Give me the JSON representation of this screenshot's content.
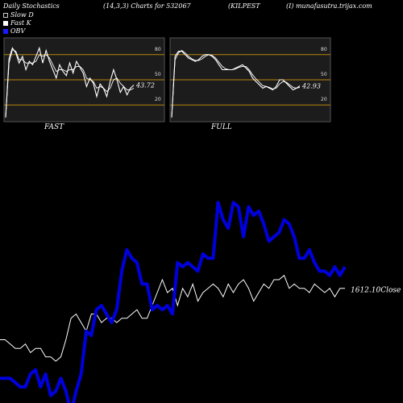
{
  "header": {
    "title": "Daily Stochastics",
    "params": "(14,3,3) Charts for 532067",
    "symbol": "(KILPEST",
    "source": "(I) munafasutra.trijax.com"
  },
  "legend": {
    "slow_d": "Slow  D",
    "fast_k": "Fast K",
    "obv": "OBV"
  },
  "colors": {
    "background": "#000000",
    "panel_background": "#1c1c1c",
    "level_line": "#b8860b",
    "stoch_line": "#ffffff",
    "obv": "#0000dd",
    "close": "#ffffff"
  },
  "chart_data": [
    {
      "type": "line",
      "panel": "FAST",
      "label": "FAST",
      "ylim": [
        0,
        100
      ],
      "levels": [
        20,
        50,
        80
      ],
      "tick_labels": [
        "80",
        "50",
        "20"
      ],
      "last_value_label": "43.72",
      "series": [
        {
          "values": [
            5,
            75,
            88,
            82,
            70,
            78,
            62,
            72,
            68,
            78,
            88,
            70,
            85,
            72,
            62,
            52,
            68,
            60,
            55,
            70,
            58,
            72,
            65,
            58,
            42,
            52,
            46,
            30,
            45,
            40,
            30,
            48,
            62,
            50,
            35,
            42,
            32,
            40,
            43.72
          ]
        },
        {
          "values": [
            5,
            70,
            86,
            84,
            74,
            74,
            70,
            70,
            70,
            72,
            80,
            78,
            80,
            76,
            68,
            60,
            62,
            62,
            60,
            62,
            62,
            66,
            66,
            62,
            52,
            50,
            48,
            40,
            42,
            40,
            36,
            40,
            50,
            52,
            46,
            42,
            38,
            38,
            40
          ]
        }
      ]
    },
    {
      "type": "line",
      "panel": "FULL",
      "label": "FULL",
      "ylim": [
        0,
        100
      ],
      "levels": [
        20,
        50,
        80
      ],
      "tick_labels": [
        "80",
        "50",
        "20"
      ],
      "last_value_label": "42.93",
      "series": [
        {
          "values": [
            5,
            78,
            84,
            84,
            80,
            76,
            74,
            72,
            74,
            78,
            80,
            80,
            78,
            74,
            68,
            62,
            62,
            62,
            62,
            64,
            66,
            68,
            64,
            60,
            52,
            48,
            44,
            40,
            42,
            40,
            38,
            42,
            50,
            50,
            46,
            42,
            38,
            40,
            42.93
          ]
        },
        {
          "values": [
            5,
            74,
            82,
            85,
            82,
            78,
            75,
            73,
            73,
            75,
            78,
            80,
            79,
            76,
            71,
            66,
            63,
            62,
            62,
            63,
            65,
            66,
            66,
            62,
            56,
            51,
            47,
            43,
            42,
            41,
            39,
            40,
            45,
            48,
            47,
            44,
            41,
            40,
            41
          ]
        }
      ]
    },
    {
      "type": "line",
      "panel": "OBV",
      "ylim": [
        0,
        100
      ],
      "series": [
        {
          "name": "OBV",
          "values": [
            10,
            10,
            10,
            8,
            6,
            6,
            12,
            14,
            6,
            12,
            2,
            4,
            10,
            4,
            -6,
            4,
            12,
            32,
            30,
            42,
            44,
            40,
            36,
            42,
            60,
            70,
            66,
            64,
            54,
            54,
            42,
            44,
            42,
            44,
            40,
            64,
            62,
            64,
            62,
            60,
            68,
            66,
            66,
            92,
            84,
            80,
            92,
            90,
            76,
            90,
            86,
            88,
            82,
            74,
            76,
            78,
            84,
            82,
            76,
            66,
            66,
            70,
            64,
            60,
            60,
            58,
            62,
            58,
            62
          ]
        },
        {
          "name": "Close",
          "values": [
            28,
            28,
            26,
            24,
            24,
            26,
            22,
            24,
            24,
            20,
            20,
            18,
            20,
            28,
            38,
            40,
            36,
            32,
            40,
            40,
            36,
            38,
            38,
            36,
            38,
            38,
            40,
            42,
            38,
            38,
            44,
            50,
            56,
            50,
            52,
            44,
            52,
            48,
            54,
            46,
            50,
            52,
            54,
            52,
            48,
            54,
            50,
            54,
            56,
            52,
            46,
            50,
            54,
            52,
            56,
            56,
            58,
            52,
            54,
            52,
            52,
            50,
            54,
            52,
            50,
            52,
            48,
            52,
            52
          ]
        }
      ],
      "last_value_label": "1612.10Close"
    }
  ],
  "panels": {
    "fast_label": "FAST",
    "full_label": "FULL"
  }
}
